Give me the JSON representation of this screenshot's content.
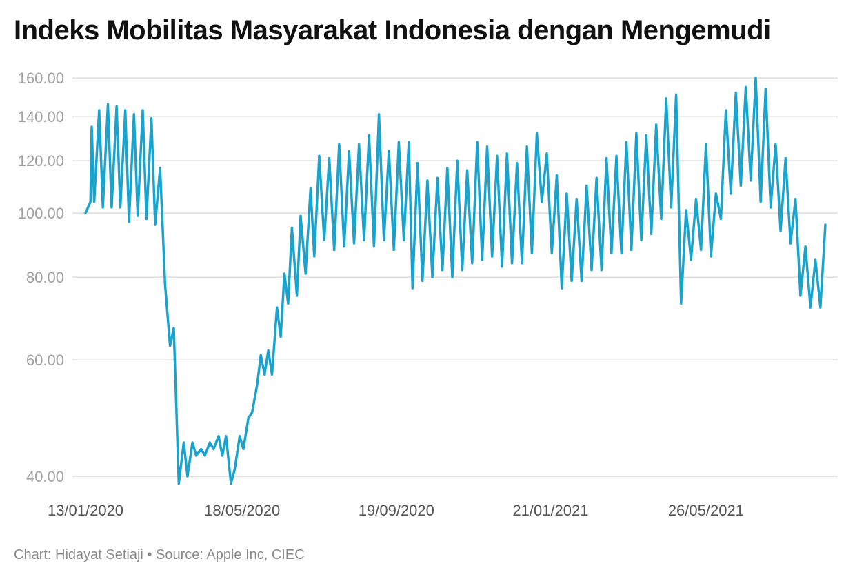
{
  "title": "Indeks Mobilitas Masyarakat Indonesia dengan Mengemudi",
  "footer": "Chart: Hidayat Setiaji • Source: Apple Inc, CIEC",
  "colors": {
    "line": "#1aa3cc",
    "grid": "#dddddd",
    "ytick": "#a0a0a0",
    "xtick": "#555555"
  },
  "chart_data": {
    "type": "line",
    "scale": "log",
    "ylim": [
      37.5,
      162
    ],
    "grid": true,
    "yticks": [
      {
        "value": 160,
        "label": "160.00"
      },
      {
        "value": 140,
        "label": "140.00"
      },
      {
        "value": 120,
        "label": "120.00"
      },
      {
        "value": 100,
        "label": "100.00"
      },
      {
        "value": 80,
        "label": "80.00"
      },
      {
        "value": 60,
        "label": "60.00"
      },
      {
        "value": 40,
        "label": "40.00"
      }
    ],
    "xticks": [
      {
        "date": "2020-01-13",
        "label": "13/01/2020"
      },
      {
        "date": "2020-05-18",
        "label": "18/05/2020"
      },
      {
        "date": "2020-09-19",
        "label": "19/09/2020"
      },
      {
        "date": "2021-01-21",
        "label": "21/01/2021"
      },
      {
        "date": "2021-05-26",
        "label": "26/05/2021"
      }
    ],
    "series": [
      {
        "points": [
          [
            "2020-01-13",
            100
          ],
          [
            "2020-01-17",
            104
          ],
          [
            "2020-01-18",
            135
          ],
          [
            "2020-01-20",
            104
          ],
          [
            "2020-01-24",
            143
          ],
          [
            "2020-01-27",
            102
          ],
          [
            "2020-01-31",
            146
          ],
          [
            "2020-02-03",
            102
          ],
          [
            "2020-02-07",
            145
          ],
          [
            "2020-02-10",
            102
          ],
          [
            "2020-02-14",
            143
          ],
          [
            "2020-02-17",
            97
          ],
          [
            "2020-02-21",
            141
          ],
          [
            "2020-02-24",
            99
          ],
          [
            "2020-02-28",
            143
          ],
          [
            "2020-03-02",
            98
          ],
          [
            "2020-03-06",
            139
          ],
          [
            "2020-03-09",
            96
          ],
          [
            "2020-03-13",
            117
          ],
          [
            "2020-03-17",
            78
          ],
          [
            "2020-03-21",
            63
          ],
          [
            "2020-03-24",
            67
          ],
          [
            "2020-03-28",
            39
          ],
          [
            "2020-04-01",
            45
          ],
          [
            "2020-04-04",
            40
          ],
          [
            "2020-04-08",
            45
          ],
          [
            "2020-04-11",
            43
          ],
          [
            "2020-04-15",
            44
          ],
          [
            "2020-04-18",
            43
          ],
          [
            "2020-04-22",
            45
          ],
          [
            "2020-04-25",
            44
          ],
          [
            "2020-04-29",
            46
          ],
          [
            "2020-05-02",
            43
          ],
          [
            "2020-05-05",
            46
          ],
          [
            "2020-05-09",
            39
          ],
          [
            "2020-05-12",
            41
          ],
          [
            "2020-05-16",
            46
          ],
          [
            "2020-05-19",
            44
          ],
          [
            "2020-05-23",
            49
          ],
          [
            "2020-05-26",
            50
          ],
          [
            "2020-05-30",
            55
          ],
          [
            "2020-06-02",
            61
          ],
          [
            "2020-06-05",
            57
          ],
          [
            "2020-06-08",
            62
          ],
          [
            "2020-06-11",
            57
          ],
          [
            "2020-06-15",
            72
          ],
          [
            "2020-06-18",
            65
          ],
          [
            "2020-06-21",
            81
          ],
          [
            "2020-06-24",
            73
          ],
          [
            "2020-06-27",
            95
          ],
          [
            "2020-07-01",
            75
          ],
          [
            "2020-07-04",
            99
          ],
          [
            "2020-07-08",
            81
          ],
          [
            "2020-07-12",
            109
          ],
          [
            "2020-07-15",
            86
          ],
          [
            "2020-07-19",
            122
          ],
          [
            "2020-07-23",
            91
          ],
          [
            "2020-07-27",
            121
          ],
          [
            "2020-07-31",
            88
          ],
          [
            "2020-08-04",
            127
          ],
          [
            "2020-08-08",
            89
          ],
          [
            "2020-08-12",
            124
          ],
          [
            "2020-08-16",
            90
          ],
          [
            "2020-08-20",
            127
          ],
          [
            "2020-08-24",
            91
          ],
          [
            "2020-08-28",
            131
          ],
          [
            "2020-09-01",
            89
          ],
          [
            "2020-09-05",
            141
          ],
          [
            "2020-09-09",
            91
          ],
          [
            "2020-09-13",
            124
          ],
          [
            "2020-09-17",
            88
          ],
          [
            "2020-09-21",
            128
          ],
          [
            "2020-09-25",
            91
          ],
          [
            "2020-09-29",
            128
          ],
          [
            "2020-10-02",
            77
          ],
          [
            "2020-10-06",
            119
          ],
          [
            "2020-10-10",
            79
          ],
          [
            "2020-10-14",
            112
          ],
          [
            "2020-10-18",
            80
          ],
          [
            "2020-10-22",
            113
          ],
          [
            "2020-10-26",
            82
          ],
          [
            "2020-10-30",
            117
          ],
          [
            "2020-11-03",
            80
          ],
          [
            "2020-11-07",
            120
          ],
          [
            "2020-11-11",
            82
          ],
          [
            "2020-11-15",
            116
          ],
          [
            "2020-11-19",
            84
          ],
          [
            "2020-11-23",
            128
          ],
          [
            "2020-11-27",
            85
          ],
          [
            "2020-12-01",
            126
          ],
          [
            "2020-12-05",
            86
          ],
          [
            "2020-12-09",
            122
          ],
          [
            "2020-12-13",
            83
          ],
          [
            "2020-12-17",
            123
          ],
          [
            "2020-12-21",
            84
          ],
          [
            "2020-12-25",
            119
          ],
          [
            "2020-12-29",
            84
          ],
          [
            "2021-01-02",
            126
          ],
          [
            "2021-01-06",
            87
          ],
          [
            "2021-01-10",
            132
          ],
          [
            "2021-01-14",
            104
          ],
          [
            "2021-01-18",
            123
          ],
          [
            "2021-01-22",
            87
          ],
          [
            "2021-01-26",
            114
          ],
          [
            "2021-01-30",
            77
          ],
          [
            "2021-02-03",
            107
          ],
          [
            "2021-02-07",
            79
          ],
          [
            "2021-02-11",
            105
          ],
          [
            "2021-02-15",
            79
          ],
          [
            "2021-02-19",
            110
          ],
          [
            "2021-02-23",
            82
          ],
          [
            "2021-02-27",
            113
          ],
          [
            "2021-03-03",
            82
          ],
          [
            "2021-03-07",
            121
          ],
          [
            "2021-03-11",
            87
          ],
          [
            "2021-03-15",
            122
          ],
          [
            "2021-03-19",
            87
          ],
          [
            "2021-03-23",
            128
          ],
          [
            "2021-03-27",
            88
          ],
          [
            "2021-03-31",
            132
          ],
          [
            "2021-04-04",
            91
          ],
          [
            "2021-04-08",
            131
          ],
          [
            "2021-04-12",
            93
          ],
          [
            "2021-04-16",
            136
          ],
          [
            "2021-04-20",
            98
          ],
          [
            "2021-04-24",
            149
          ],
          [
            "2021-04-28",
            102
          ],
          [
            "2021-05-02",
            151
          ],
          [
            "2021-05-06",
            73
          ],
          [
            "2021-05-10",
            101
          ],
          [
            "2021-05-14",
            85
          ],
          [
            "2021-05-18",
            105
          ],
          [
            "2021-05-22",
            88
          ],
          [
            "2021-05-26",
            127
          ],
          [
            "2021-05-30",
            86
          ],
          [
            "2021-06-03",
            107
          ],
          [
            "2021-06-07",
            98
          ],
          [
            "2021-06-11",
            143
          ],
          [
            "2021-06-15",
            107
          ],
          [
            "2021-06-19",
            152
          ],
          [
            "2021-06-23",
            110
          ],
          [
            "2021-06-27",
            155
          ],
          [
            "2021-07-01",
            112
          ],
          [
            "2021-07-05",
            160
          ],
          [
            "2021-07-09",
            104
          ],
          [
            "2021-07-13",
            154
          ],
          [
            "2021-07-17",
            102
          ],
          [
            "2021-07-21",
            127
          ],
          [
            "2021-07-25",
            94
          ],
          [
            "2021-07-29",
            121
          ],
          [
            "2021-08-02",
            90
          ],
          [
            "2021-08-06",
            105
          ],
          [
            "2021-08-10",
            75
          ],
          [
            "2021-08-14",
            89
          ],
          [
            "2021-08-18",
            72
          ],
          [
            "2021-08-22",
            85
          ],
          [
            "2021-08-26",
            72
          ],
          [
            "2021-08-30",
            96
          ]
        ]
      }
    ]
  }
}
